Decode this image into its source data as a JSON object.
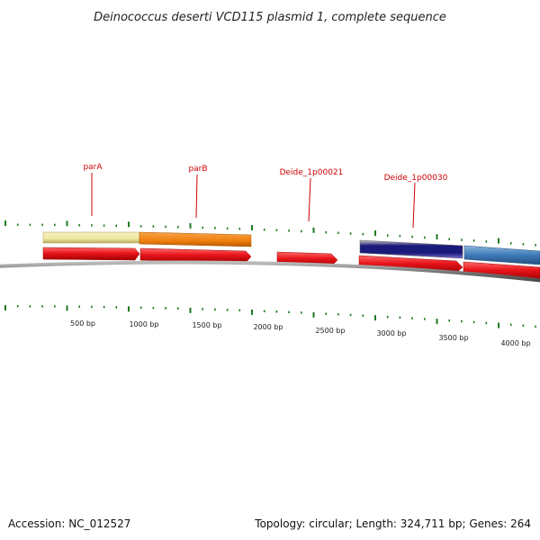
{
  "title": "Deinococcus deserti VCD115 plasmid 1, complete sequence",
  "footer": {
    "accession": "Accession: NC_012527",
    "summary": "Topology: circular; Length: 324,711 bp; Genes: 264"
  },
  "colors": {
    "tick": "#1f7a1f",
    "backbone": "#7a7a7a",
    "label": "#cc0000",
    "cds": "#e8151b",
    "pale_yellow": "#efe7a0",
    "orange": "#ef7f0d",
    "navy": "#1a1a7a",
    "steel_blue": "#3d7ab8"
  },
  "scale": {
    "unit": "bp",
    "labels": [
      "500 bp",
      "1000 bp",
      "1500 bp",
      "2000 bp",
      "2500 bp",
      "3000 bp",
      "3500 bp",
      "4000 bp"
    ]
  },
  "gene_labels": [
    {
      "name": "parA"
    },
    {
      "name": "parB"
    },
    {
      "name": "Deide_1p00021"
    },
    {
      "name": "Deide_1p00030"
    }
  ],
  "features": [
    {
      "track": "upper",
      "color": "#efe7a0",
      "start_bp": 0,
      "end_bp": 800
    },
    {
      "track": "upper",
      "color": "#ef7f0d",
      "start_bp": 800,
      "end_bp": 1700
    },
    {
      "track": "upper",
      "color": "#1a1a7a",
      "start_bp": 2800,
      "end_bp": 3650
    },
    {
      "track": "upper",
      "color": "#3d7ab8",
      "start_bp": 3650,
      "end_bp": 4300
    },
    {
      "track": "cds",
      "color": "#e8151b",
      "start_bp": 0,
      "end_bp": 800
    },
    {
      "track": "cds",
      "color": "#e8151b",
      "start_bp": 800,
      "end_bp": 1700
    },
    {
      "track": "cds",
      "color": "#e8151b",
      "start_bp": 2000,
      "end_bp": 2480
    },
    {
      "track": "cds",
      "color": "#e8151b",
      "start_bp": 2800,
      "end_bp": 3650
    },
    {
      "track": "cds",
      "color": "#e8151b",
      "start_bp": 3650,
      "end_bp": 4300
    }
  ]
}
